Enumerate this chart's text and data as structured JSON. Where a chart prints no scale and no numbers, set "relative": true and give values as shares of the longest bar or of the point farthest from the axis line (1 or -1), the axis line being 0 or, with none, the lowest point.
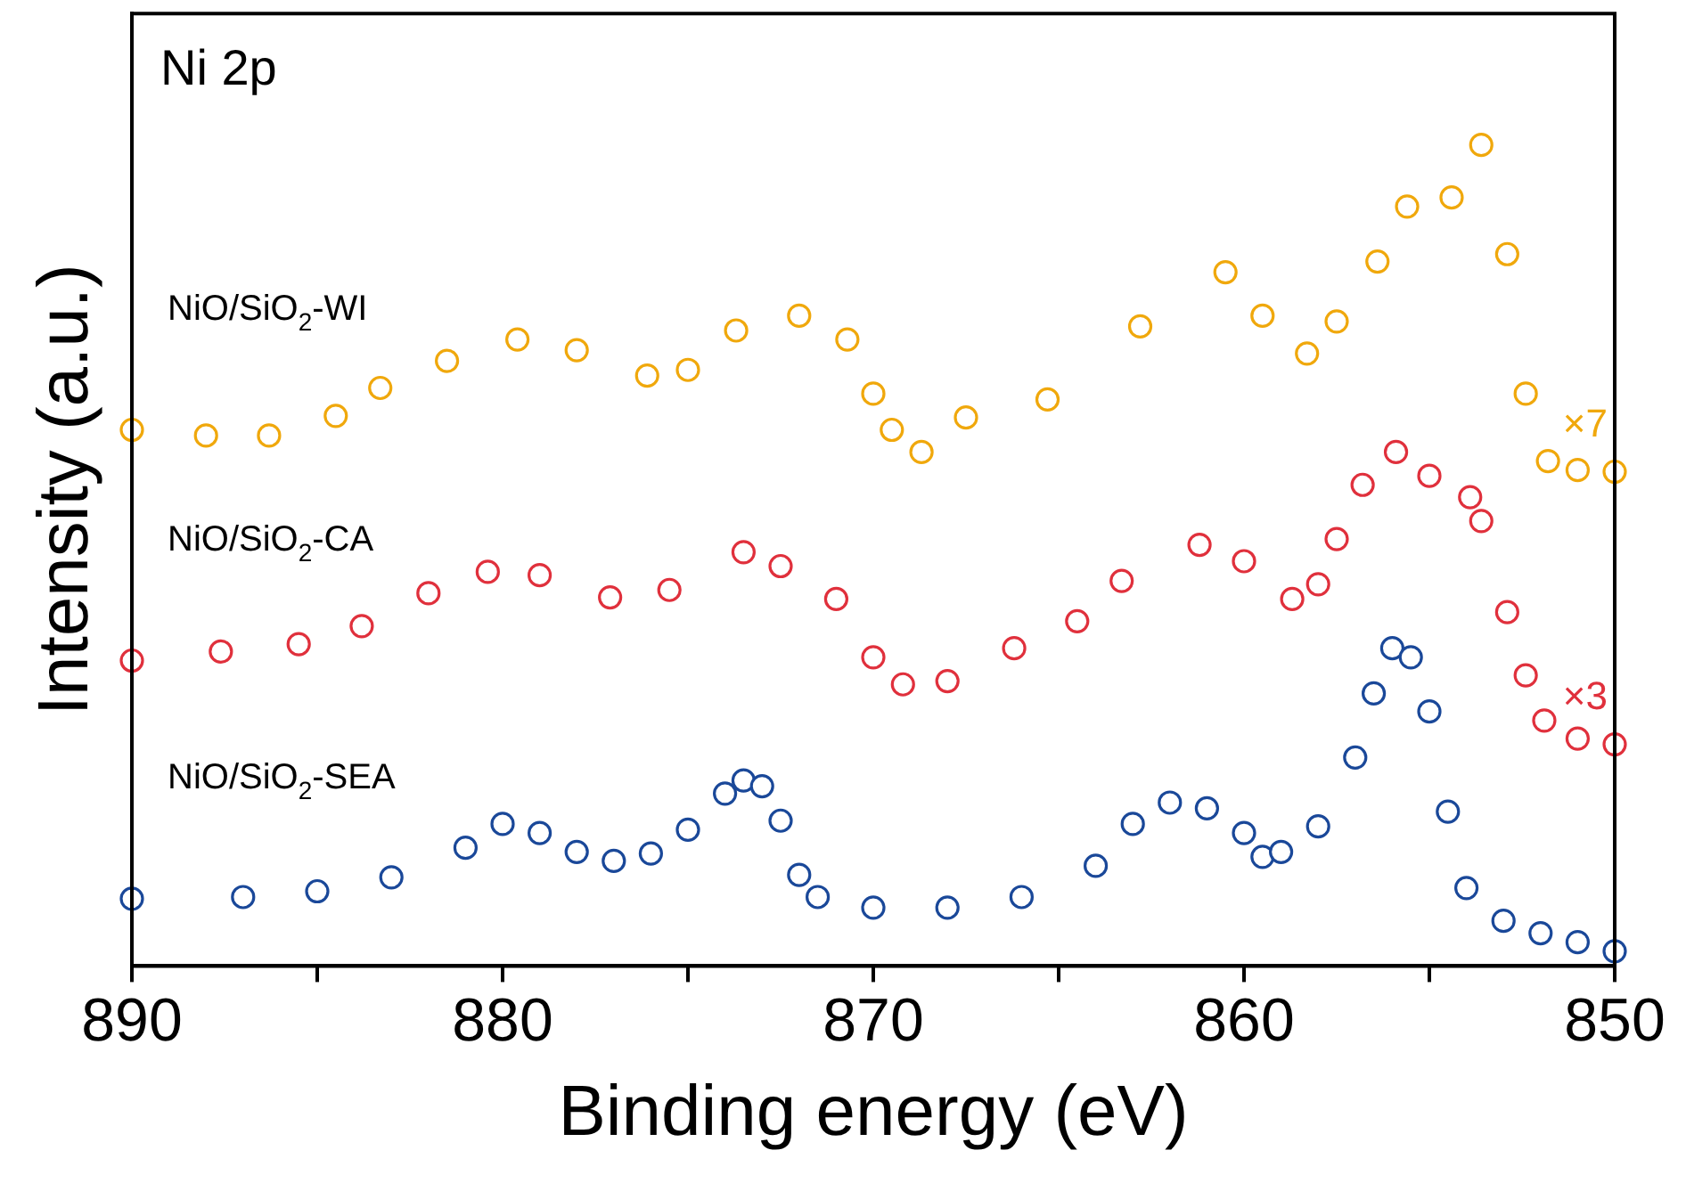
{
  "chart_data": {
    "type": "scatter",
    "title": "Ni 2p",
    "xlabel": "Binding energy (eV)",
    "ylabel": "Intensity (a.u.)",
    "relative": true,
    "marker": "circle",
    "legend": false,
    "xlim": [
      890,
      850
    ],
    "xticks": [
      890,
      {
        "value": 885,
        "label": null
      },
      880,
      {
        "value": 875,
        "label": null
      },
      870,
      {
        "value": 865,
        "label": null
      },
      860,
      {
        "value": 855,
        "label": null
      },
      850
    ],
    "annotations": [
      "×7",
      "×3"
    ],
    "series": [
      {
        "name": "NiO/SiO$_{2}$-WI",
        "color": "#f0a80c",
        "x": [
          890,
          888,
          886.3,
          884.5,
          883.3,
          881.5,
          879.6,
          878,
          876.1,
          875,
          873.7,
          872,
          870.7,
          870,
          869.5,
          868.7,
          867.5,
          865.3,
          862.8,
          860.5,
          859.5,
          858.3,
          857.5,
          856.4,
          855.6,
          854.4,
          853.6,
          852.9,
          852.4,
          851.8,
          851,
          850
        ],
        "values": [
          0.653,
          0.646,
          0.646,
          0.67,
          0.704,
          0.737,
          0.763,
          0.75,
          0.719,
          0.726,
          0.774,
          0.792,
          0.763,
          0.697,
          0.653,
          0.626,
          0.668,
          0.69,
          0.779,
          0.845,
          0.792,
          0.746,
          0.785,
          0.858,
          0.925,
          0.936,
          1,
          0.867,
          0.697,
          0.615,
          0.604,
          0.602
        ]
      },
      {
        "name": "NiO/SiO$_{2}$-CA",
        "color": "#e0303c",
        "x": [
          890,
          887.6,
          885.5,
          883.8,
          882,
          880.4,
          879,
          877.1,
          875.5,
          873.5,
          872.5,
          871,
          870,
          869.2,
          868,
          866.2,
          864.5,
          863.3,
          861.2,
          860,
          858.7,
          858,
          857.5,
          856.8,
          855.9,
          855,
          853.9,
          853.6,
          852.9,
          852.4,
          851.9,
          851,
          850
        ],
        "values": [
          0.372,
          0.383,
          0.392,
          0.414,
          0.454,
          0.48,
          0.476,
          0.449,
          0.458,
          0.504,
          0.487,
          0.447,
          0.376,
          0.343,
          0.347,
          0.387,
          0.42,
          0.469,
          0.513,
          0.493,
          0.447,
          0.465,
          0.52,
          0.586,
          0.626,
          0.597,
          0.571,
          0.542,
          0.431,
          0.354,
          0.299,
          0.277,
          0.27
        ]
      },
      {
        "name": "NiO/SiO$_{2}$-SEA",
        "color": "#1a4899",
        "x": [
          890,
          887,
          885,
          883,
          881,
          880,
          879,
          878,
          877,
          876,
          875,
          874,
          873.5,
          873,
          872.5,
          872,
          871.5,
          870,
          868,
          866,
          864,
          863,
          862,
          861,
          860,
          859.5,
          859,
          858,
          857,
          856.5,
          856,
          855.5,
          855,
          854.5,
          854,
          853,
          852,
          851,
          850
        ],
        "values": [
          0.082,
          0.084,
          0.091,
          0.108,
          0.144,
          0.173,
          0.162,
          0.139,
          0.128,
          0.137,
          0.166,
          0.21,
          0.226,
          0.219,
          0.177,
          0.111,
          0.084,
          0.071,
          0.071,
          0.084,
          0.122,
          0.173,
          0.199,
          0.192,
          0.162,
          0.133,
          0.139,
          0.17,
          0.254,
          0.332,
          0.387,
          0.376,
          0.31,
          0.188,
          0.095,
          0.055,
          0.04,
          0.029,
          0.018
        ]
      }
    ]
  }
}
